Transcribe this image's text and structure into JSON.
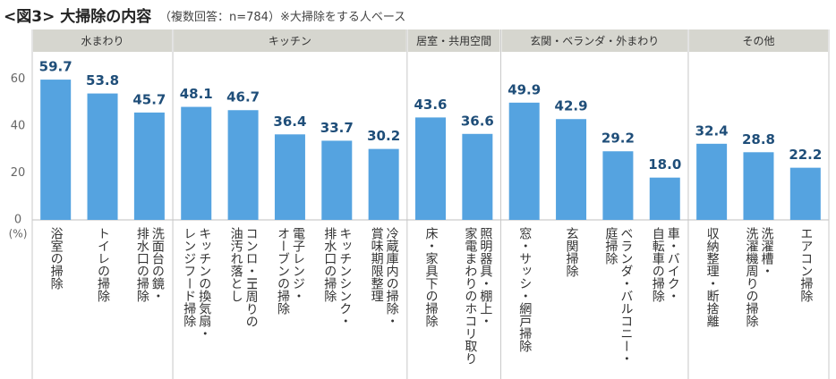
{
  "chart_data": {
    "type": "bar",
    "title": "<図3> 大掃除の内容",
    "subtitle": "（複数回答：n=784）※大掃除をする人ベース",
    "y_label": "(%)",
    "color": "#55a3e0",
    "ylim": [
      0,
      70
    ],
    "yticks": [
      0,
      20,
      40,
      60
    ],
    "grid": false,
    "groups": [
      {
        "name": "水まわり",
        "categories": [
          "浴室の掃除",
          "トイレの掃除",
          "洗面台の鏡・\n排水口の掃除"
        ],
        "values": [
          59.7,
          53.8,
          45.7
        ],
        "value_labels": [
          "59.7",
          "53.8",
          "45.7"
        ]
      },
      {
        "name": "キッチン",
        "categories": [
          "キッチンの換気扇・\nレンジフード掃除",
          "コンロ・IH周りの\n油汚れ落とし",
          "電子レンジ・\nオーブンの掃除",
          "キッチンシンク・\n排水口の掃除",
          "冷蔵庫内の掃除・\n賞味期限整理"
        ],
        "values": [
          48.1,
          46.7,
          36.4,
          33.7,
          30.2
        ],
        "value_labels": [
          "48.1",
          "46.7",
          "36.4",
          "33.7",
          "30.2"
        ]
      },
      {
        "name": "居室・共用空間",
        "categories": [
          "床・家具下の掃除",
          "照明器具・棚上・\n家電まわりのホコリ取り"
        ],
        "values": [
          43.6,
          36.6
        ],
        "value_labels": [
          "43.6",
          "36.6"
        ]
      },
      {
        "name": "玄関・ベランダ・外まわり",
        "categories": [
          "窓・サッシ・網戸掃除",
          "玄関掃除",
          "ベランダ・バルコニー・\n庭掃除",
          "車・バイク・\n自転車の掃除"
        ],
        "values": [
          49.9,
          42.9,
          29.2,
          18.0
        ],
        "value_labels": [
          "49.9",
          "42.9",
          "29.2",
          "18.0"
        ]
      },
      {
        "name": "その他",
        "categories": [
          "収納整理・断捨離",
          "洗濯槽・\n洗濯機周りの掃除",
          "エアコン掃除"
        ],
        "values": [
          32.4,
          28.8,
          22.2
        ],
        "value_labels": [
          "32.4",
          "28.8",
          "22.2"
        ]
      }
    ]
  }
}
